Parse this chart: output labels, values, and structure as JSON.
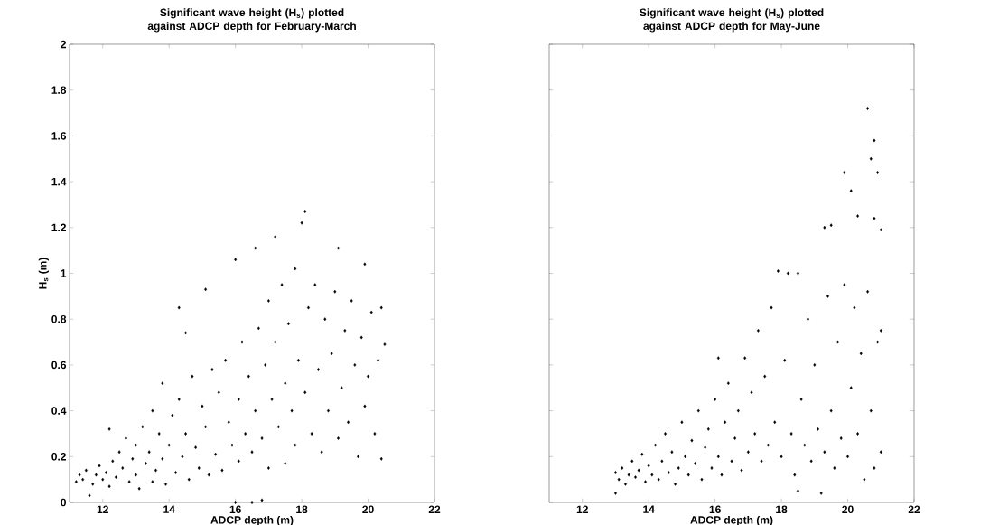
{
  "chart_data": [
    {
      "type": "scatter",
      "title": "Significant wave height (H$_{s}$) plotted against ADCP depth for February-March",
      "xlabel": "ADCP depth (m)",
      "ylabel": "H$_{s}$ (m)",
      "color": "#000000",
      "marker": "diamond",
      "xlim": [
        11,
        22
      ],
      "ylim": [
        0,
        2
      ],
      "xticks": [
        12,
        14,
        16,
        18,
        20,
        22
      ],
      "yticks": [
        0,
        0.2,
        0.4,
        0.6,
        0.8,
        1,
        1.2,
        1.4,
        1.6,
        1.8,
        2
      ],
      "x": [
        11.2,
        11.3,
        11.4,
        11.5,
        11.6,
        11.7,
        11.8,
        11.9,
        12.0,
        12.1,
        12.2,
        12.2,
        12.3,
        12.4,
        12.5,
        12.6,
        12.7,
        12.8,
        12.9,
        13.0,
        13.0,
        13.1,
        13.2,
        13.3,
        13.4,
        13.5,
        13.5,
        13.6,
        13.7,
        13.8,
        13.8,
        13.9,
        14.0,
        14.1,
        14.2,
        14.3,
        14.3,
        14.4,
        14.5,
        14.5,
        14.6,
        14.7,
        14.8,
        14.9,
        15.0,
        15.1,
        15.1,
        15.2,
        15.3,
        15.4,
        15.5,
        15.6,
        15.7,
        15.8,
        15.9,
        16.0,
        16.0,
        16.1,
        16.1,
        16.2,
        16.3,
        16.4,
        16.5,
        16.5,
        16.6,
        16.6,
        16.7,
        16.8,
        16.8,
        16.9,
        17.0,
        17.0,
        17.1,
        17.2,
        17.2,
        17.3,
        17.4,
        17.5,
        17.5,
        17.6,
        17.7,
        17.8,
        17.8,
        17.9,
        18.0,
        18.1,
        18.1,
        18.2,
        18.3,
        18.4,
        18.5,
        18.6,
        18.7,
        18.8,
        18.9,
        19.0,
        19.1,
        19.1,
        19.2,
        19.3,
        19.4,
        19.5,
        19.6,
        19.7,
        19.8,
        19.9,
        19.9,
        20.0,
        20.1,
        20.2,
        20.3,
        20.4,
        20.4,
        20.5
      ],
      "values": [
        0.09,
        0.12,
        0.1,
        0.14,
        0.03,
        0.08,
        0.12,
        0.16,
        0.1,
        0.13,
        0.32,
        0.07,
        0.18,
        0.11,
        0.22,
        0.15,
        0.28,
        0.09,
        0.19,
        0.25,
        0.12,
        0.06,
        0.33,
        0.17,
        0.22,
        0.4,
        0.09,
        0.14,
        0.3,
        0.52,
        0.19,
        0.08,
        0.25,
        0.38,
        0.13,
        0.85,
        0.45,
        0.2,
        0.74,
        0.3,
        0.1,
        0.55,
        0.24,
        0.15,
        0.42,
        0.93,
        0.33,
        0.12,
        0.58,
        0.21,
        0.48,
        0.14,
        0.62,
        0.35,
        0.25,
        1.06,
        0.0,
        0.45,
        0.18,
        0.7,
        0.3,
        0.55,
        0.0,
        0.22,
        1.11,
        0.4,
        0.76,
        0.01,
        0.28,
        0.6,
        0.88,
        0.15,
        0.45,
        1.16,
        0.7,
        0.33,
        0.95,
        0.52,
        0.17,
        0.78,
        0.4,
        1.02,
        0.25,
        0.62,
        1.22,
        1.27,
        0.48,
        0.85,
        0.3,
        0.95,
        0.58,
        0.22,
        0.8,
        0.4,
        0.65,
        0.92,
        1.11,
        0.28,
        0.5,
        0.75,
        0.35,
        0.88,
        0.6,
        0.2,
        0.72,
        1.04,
        0.42,
        0.55,
        0.83,
        0.3,
        0.62,
        0.19,
        0.85,
        0.69
      ]
    },
    {
      "type": "scatter",
      "title": "Significant wave height (H$_{s}$) plotted against ADCP depth for May-June",
      "xlabel": "ADCP depth (m)",
      "color": "#000000",
      "marker": "diamond",
      "tick_labels": "x",
      "xlim": [
        11,
        22
      ],
      "ylim": [
        0,
        2
      ],
      "xticks": [
        12,
        14,
        16,
        18,
        20,
        22
      ],
      "yticks": [
        0,
        0.2,
        0.4,
        0.6,
        0.8,
        1,
        1.2,
        1.4,
        1.6,
        1.8,
        2
      ],
      "x": [
        13.0,
        13.0,
        13.1,
        13.2,
        13.3,
        13.4,
        13.5,
        13.6,
        13.7,
        13.8,
        13.9,
        14.0,
        14.1,
        14.2,
        14.3,
        14.4,
        14.5,
        14.6,
        14.7,
        14.8,
        14.9,
        15.0,
        15.1,
        15.2,
        15.3,
        15.4,
        15.5,
        15.6,
        15.7,
        15.8,
        15.9,
        16.0,
        16.1,
        16.1,
        16.2,
        16.3,
        16.4,
        16.5,
        16.6,
        16.7,
        16.8,
        16.9,
        17.0,
        17.1,
        17.2,
        17.3,
        17.4,
        17.5,
        17.6,
        17.7,
        17.8,
        17.9,
        18.0,
        18.1,
        18.2,
        18.3,
        18.4,
        18.5,
        18.5,
        18.6,
        18.7,
        18.8,
        18.9,
        19.0,
        19.1,
        19.2,
        19.3,
        19.3,
        19.4,
        19.5,
        19.5,
        19.6,
        19.7,
        19.8,
        19.9,
        19.9,
        20.0,
        20.1,
        20.1,
        20.2,
        20.3,
        20.3,
        20.4,
        20.5,
        20.6,
        20.6,
        20.7,
        20.7,
        20.8,
        20.8,
        20.9,
        20.9,
        21.0,
        21.0,
        21.0,
        20.8
      ],
      "values": [
        0.04,
        0.13,
        0.1,
        0.15,
        0.08,
        0.12,
        0.18,
        0.11,
        0.14,
        0.21,
        0.09,
        0.16,
        0.12,
        0.25,
        0.1,
        0.18,
        0.3,
        0.13,
        0.22,
        0.08,
        0.15,
        0.35,
        0.2,
        0.12,
        0.27,
        0.17,
        0.4,
        0.1,
        0.24,
        0.32,
        0.15,
        0.45,
        0.63,
        0.2,
        0.12,
        0.35,
        0.52,
        0.18,
        0.28,
        0.4,
        0.14,
        0.63,
        0.22,
        0.48,
        0.3,
        0.75,
        0.18,
        0.55,
        0.25,
        0.85,
        0.35,
        1.01,
        0.2,
        0.62,
        1.0,
        0.3,
        0.12,
        1.0,
        0.05,
        0.45,
        0.25,
        0.8,
        0.18,
        0.6,
        0.32,
        0.04,
        1.2,
        0.22,
        0.9,
        1.21,
        0.4,
        0.15,
        0.7,
        0.28,
        1.44,
        0.95,
        0.2,
        1.36,
        0.5,
        0.85,
        1.25,
        0.3,
        0.65,
        0.1,
        1.72,
        0.92,
        1.5,
        0.4,
        1.58,
        1.24,
        1.44,
        0.7,
        1.19,
        0.75,
        0.22,
        0.15
      ]
    }
  ]
}
